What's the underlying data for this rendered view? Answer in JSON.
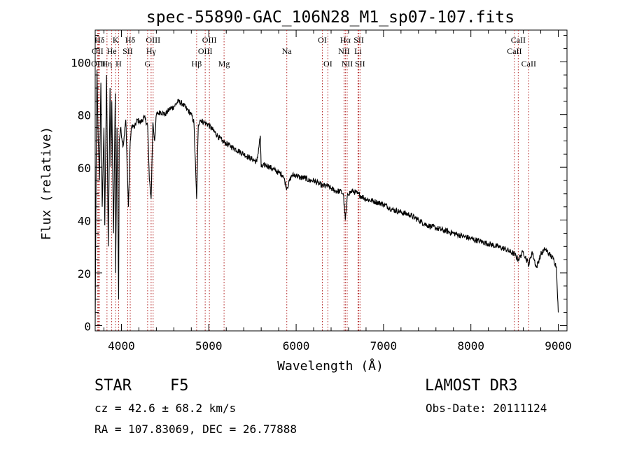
{
  "chart_data": {
    "type": "line",
    "title": "spec-55890-GAC_106N28_M1_sp07-107.fits",
    "xlabel": "Wavelength (Å)",
    "ylabel": "Flux (relative)",
    "xlim": [
      3700,
      9100
    ],
    "ylim": [
      -2,
      112
    ],
    "x_ticks": [
      4000,
      5000,
      6000,
      7000,
      8000,
      9000
    ],
    "x_tick_labels": [
      "4000",
      "5000",
      "6000",
      "7000",
      "8000",
      "9000"
    ],
    "y_ticks": [
      0,
      20,
      40,
      60,
      80,
      100
    ],
    "y_tick_labels": [
      "0",
      "20",
      "40",
      "60",
      "80",
      "100"
    ],
    "grid": false,
    "series": [
      {
        "name": "spectrum",
        "x": [
          3700,
          3710,
          3720,
          3735,
          3750,
          3765,
          3780,
          3800,
          3810,
          3830,
          3850,
          3870,
          3880,
          3890,
          3910,
          3930,
          3934,
          3950,
          3968,
          3975,
          3990,
          4020,
          4050,
          4080,
          4101,
          4120,
          4150,
          4180,
          4220,
          4260,
          4300,
          4320,
          4340,
          4360,
          4380,
          4400,
          4450,
          4500,
          4550,
          4600,
          4650,
          4700,
          4750,
          4800,
          4830,
          4861,
          4880,
          4900,
          4950,
          5000,
          5050,
          5100,
          5150,
          5200,
          5250,
          5300,
          5350,
          5400,
          5450,
          5500,
          5550,
          5590,
          5600,
          5650,
          5700,
          5750,
          5800,
          5850,
          5893,
          5950,
          6000,
          6050,
          6100,
          6150,
          6200,
          6250,
          6300,
          6350,
          6400,
          6450,
          6500,
          6540,
          6563,
          6590,
          6650,
          6700,
          6800,
          6900,
          7000,
          7100,
          7200,
          7300,
          7400,
          7500,
          7600,
          7700,
          7800,
          7900,
          8000,
          8100,
          8200,
          8300,
          8400,
          8500,
          8542,
          8600,
          8662,
          8700,
          8750,
          8800,
          8850,
          8900,
          8950,
          8980,
          9000
        ],
        "y": [
          0,
          55,
          97,
          70,
          55,
          92,
          45,
          75,
          38,
          95,
          30,
          90,
          60,
          85,
          35,
          88,
          20,
          75,
          10,
          70,
          75,
          68,
          78,
          45,
          70,
          76,
          75,
          78,
          77,
          79,
          76,
          55,
          48,
          77,
          70,
          80,
          81,
          80,
          82,
          83,
          85,
          84,
          82,
          80,
          77,
          48,
          76,
          78,
          77,
          76,
          74,
          72,
          70,
          69,
          68,
          67,
          66,
          65,
          64,
          63,
          62,
          72,
          60,
          61,
          60,
          59,
          58,
          57,
          52,
          57,
          57,
          56,
          56,
          55,
          55,
          54,
          53,
          53,
          52,
          51,
          51,
          50,
          40,
          50,
          51,
          50,
          48,
          47,
          46,
          44,
          43,
          42,
          40,
          38,
          37,
          36,
          35,
          34,
          33,
          32,
          31,
          30,
          29,
          27,
          25,
          28,
          23,
          28,
          22,
          27,
          29,
          27,
          25,
          22,
          5
        ]
      }
    ],
    "line_markers": [
      {
        "label": "Hδ",
        "x": 3750,
        "row": 1
      },
      {
        "label": "OII",
        "x": 3727,
        "row": 2
      },
      {
        "label": "OIII",
        "x": 3736,
        "row": 3
      },
      {
        "label": "Hη",
        "x": 3835,
        "row": 3
      },
      {
        "label": "K",
        "x": 3934,
        "row": 1
      },
      {
        "label": "He",
        "x": 3889,
        "row": 2
      },
      {
        "label": "H",
        "x": 3968,
        "row": 3
      },
      {
        "label": "Hδ",
        "x": 4101,
        "row": 1
      },
      {
        "label": "SII",
        "x": 4072,
        "row": 2
      },
      {
        "label": "OIII",
        "x": 4363,
        "row": 1
      },
      {
        "label": "Hγ",
        "x": 4340,
        "row": 2
      },
      {
        "label": "G",
        "x": 4300,
        "row": 3
      },
      {
        "label": "OIII",
        "x": 5007,
        "row": 1
      },
      {
        "label": "OIII",
        "x": 4959,
        "row": 2
      },
      {
        "label": "Hβ",
        "x": 4861,
        "row": 3
      },
      {
        "label": "Mg",
        "x": 5175,
        "row": 3
      },
      {
        "label": "Na",
        "x": 5893,
        "row": 2
      },
      {
        "label": "OI",
        "x": 6300,
        "row": 1
      },
      {
        "label": "OI",
        "x": 6363,
        "row": 3
      },
      {
        "label": "Hα",
        "x": 6563,
        "row": 1
      },
      {
        "label": "NII",
        "x": 6548,
        "row": 2
      },
      {
        "label": "NII",
        "x": 6584,
        "row": 3
      },
      {
        "label": "SII",
        "x": 6717,
        "row": 1
      },
      {
        "label": "Li",
        "x": 6708,
        "row": 2
      },
      {
        "label": "SII",
        "x": 6731,
        "row": 3
      },
      {
        "label": "CaII",
        "x": 8542,
        "row": 1
      },
      {
        "label": "CaII",
        "x": 8498,
        "row": 2
      },
      {
        "label": "CaII",
        "x": 8662,
        "row": 3
      }
    ]
  },
  "info": {
    "object_class": "STAR",
    "subclass": "F5",
    "survey": "LAMOST DR3",
    "cz_line": "cz = 42.6 ± 68.2 km/s",
    "obs_date_line": "Obs-Date: 20111124",
    "coords_line": "RA = 107.83069, DEC =  26.77888"
  },
  "colors": {
    "line": "#000000",
    "marker": "#b22222",
    "axis": "#000000"
  }
}
